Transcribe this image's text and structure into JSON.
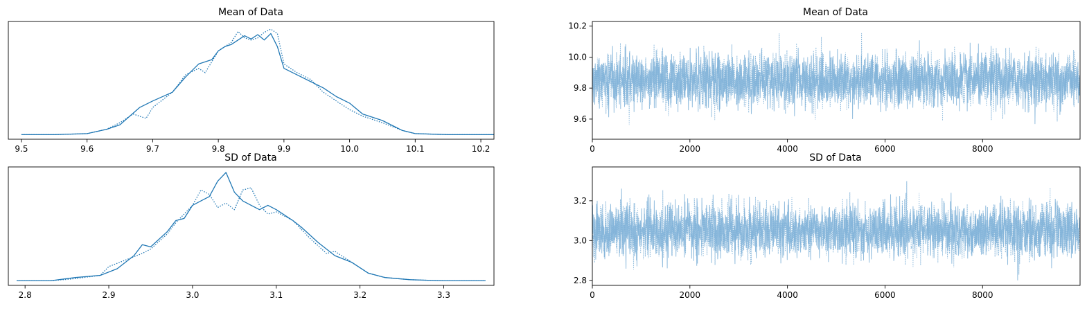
{
  "chart_data": [
    {
      "id": "mean-kde",
      "type": "line",
      "title": "Mean of Data",
      "xlabel": "",
      "ylabel": "",
      "xlim": [
        9.48,
        10.22
      ],
      "xticks": [
        "9.5",
        "9.6",
        "9.7",
        "9.8",
        "9.9",
        "10.0",
        "10.1",
        "10.2"
      ],
      "yticks": [],
      "grid": false,
      "series": [
        {
          "style": "solid",
          "x": [
            9.5,
            9.55,
            9.6,
            9.63,
            9.65,
            9.68,
            9.7,
            9.73,
            9.75,
            9.77,
            9.79,
            9.8,
            9.81,
            9.82,
            9.83,
            9.84,
            9.85,
            9.86,
            9.87,
            9.88,
            9.89,
            9.9,
            9.92,
            9.94,
            9.96,
            9.98,
            10.0,
            10.02,
            10.05,
            10.08,
            10.1,
            10.15,
            10.22
          ],
          "y": [
            0.01,
            0.01,
            0.02,
            0.06,
            0.1,
            0.26,
            0.32,
            0.4,
            0.54,
            0.66,
            0.7,
            0.78,
            0.82,
            0.84,
            0.88,
            0.92,
            0.89,
            0.93,
            0.88,
            0.94,
            0.82,
            0.62,
            0.56,
            0.5,
            0.44,
            0.36,
            0.3,
            0.2,
            0.14,
            0.05,
            0.02,
            0.01,
            0.01
          ]
        },
        {
          "style": "dotted",
          "x": [
            9.5,
            9.55,
            9.6,
            9.63,
            9.65,
            9.67,
            9.69,
            9.7,
            9.73,
            9.75,
            9.77,
            9.78,
            9.8,
            9.81,
            9.82,
            9.83,
            9.84,
            9.85,
            9.86,
            9.87,
            9.88,
            9.89,
            9.9,
            9.92,
            9.94,
            9.96,
            9.98,
            10.0,
            10.02,
            10.05,
            10.08,
            10.1,
            10.15,
            10.22
          ],
          "y": [
            0.01,
            0.01,
            0.02,
            0.06,
            0.12,
            0.2,
            0.16,
            0.26,
            0.4,
            0.56,
            0.62,
            0.58,
            0.78,
            0.82,
            0.86,
            0.96,
            0.9,
            0.88,
            0.9,
            0.95,
            0.98,
            0.94,
            0.66,
            0.58,
            0.52,
            0.4,
            0.32,
            0.24,
            0.18,
            0.12,
            0.05,
            0.02,
            0.01,
            0.01
          ]
        }
      ]
    },
    {
      "id": "mean-trace",
      "type": "line",
      "title": "Mean of Data",
      "xlabel": "",
      "ylabel": "",
      "xlim": [
        0,
        9999
      ],
      "ylim": [
        9.47,
        10.23
      ],
      "xticks": [
        "0",
        "2000",
        "4000",
        "6000",
        "8000"
      ],
      "yticks": [
        "9.6",
        "9.8",
        "10.0",
        "10.2"
      ],
      "grid": false,
      "trace": {
        "samples": 10000,
        "chains": 2,
        "center": 9.85,
        "sd": 0.085,
        "min": 9.5,
        "max": 10.22
      }
    },
    {
      "id": "sd-kde",
      "type": "line",
      "title": "SD of Data",
      "xlabel": "",
      "ylabel": "",
      "xlim": [
        2.78,
        3.36
      ],
      "xticks": [
        "2.8",
        "2.9",
        "3.0",
        "3.1",
        "3.2",
        "3.3"
      ],
      "yticks": [],
      "grid": false,
      "series": [
        {
          "style": "solid",
          "x": [
            2.79,
            2.83,
            2.86,
            2.89,
            2.91,
            2.93,
            2.94,
            2.95,
            2.97,
            2.98,
            2.99,
            3.0,
            3.01,
            3.02,
            3.03,
            3.04,
            3.05,
            3.06,
            3.07,
            3.08,
            3.09,
            3.1,
            3.12,
            3.13,
            3.15,
            3.17,
            3.19,
            3.21,
            3.23,
            3.26,
            3.3,
            3.35
          ],
          "y": [
            0.01,
            0.01,
            0.04,
            0.06,
            0.12,
            0.24,
            0.34,
            0.32,
            0.46,
            0.56,
            0.58,
            0.7,
            0.74,
            0.78,
            0.92,
            1.0,
            0.82,
            0.74,
            0.7,
            0.66,
            0.7,
            0.66,
            0.56,
            0.5,
            0.36,
            0.24,
            0.18,
            0.08,
            0.04,
            0.02,
            0.01,
            0.01
          ]
        },
        {
          "style": "dotted",
          "x": [
            2.79,
            2.83,
            2.86,
            2.89,
            2.9,
            2.92,
            2.94,
            2.95,
            2.97,
            2.98,
            3.0,
            3.01,
            3.02,
            3.03,
            3.04,
            3.05,
            3.06,
            3.07,
            3.08,
            3.09,
            3.1,
            3.12,
            3.14,
            3.16,
            3.17,
            3.19,
            3.21,
            3.23,
            3.26,
            3.3,
            3.35
          ],
          "y": [
            0.01,
            0.01,
            0.03,
            0.06,
            0.14,
            0.2,
            0.26,
            0.3,
            0.44,
            0.54,
            0.7,
            0.84,
            0.8,
            0.68,
            0.72,
            0.66,
            0.84,
            0.86,
            0.7,
            0.62,
            0.64,
            0.56,
            0.4,
            0.26,
            0.28,
            0.18,
            0.08,
            0.04,
            0.02,
            0.01,
            0.01
          ]
        }
      ]
    },
    {
      "id": "sd-trace",
      "type": "line",
      "title": "SD of Data",
      "xlabel": "",
      "ylabel": "",
      "xlim": [
        0,
        9999
      ],
      "ylim": [
        2.775,
        3.37
      ],
      "xticks": [
        "0",
        "2000",
        "4000",
        "6000",
        "8000"
      ],
      "yticks": [
        "2.8",
        "3.0",
        "3.2"
      ],
      "grid": false,
      "trace": {
        "samples": 10000,
        "chains": 2,
        "center": 3.05,
        "sd": 0.065,
        "min": 2.8,
        "max": 3.35
      }
    }
  ],
  "colors": {
    "kde_line": "#1f77b4",
    "trace_line": "#7fb1d8",
    "axes": "#000000"
  }
}
